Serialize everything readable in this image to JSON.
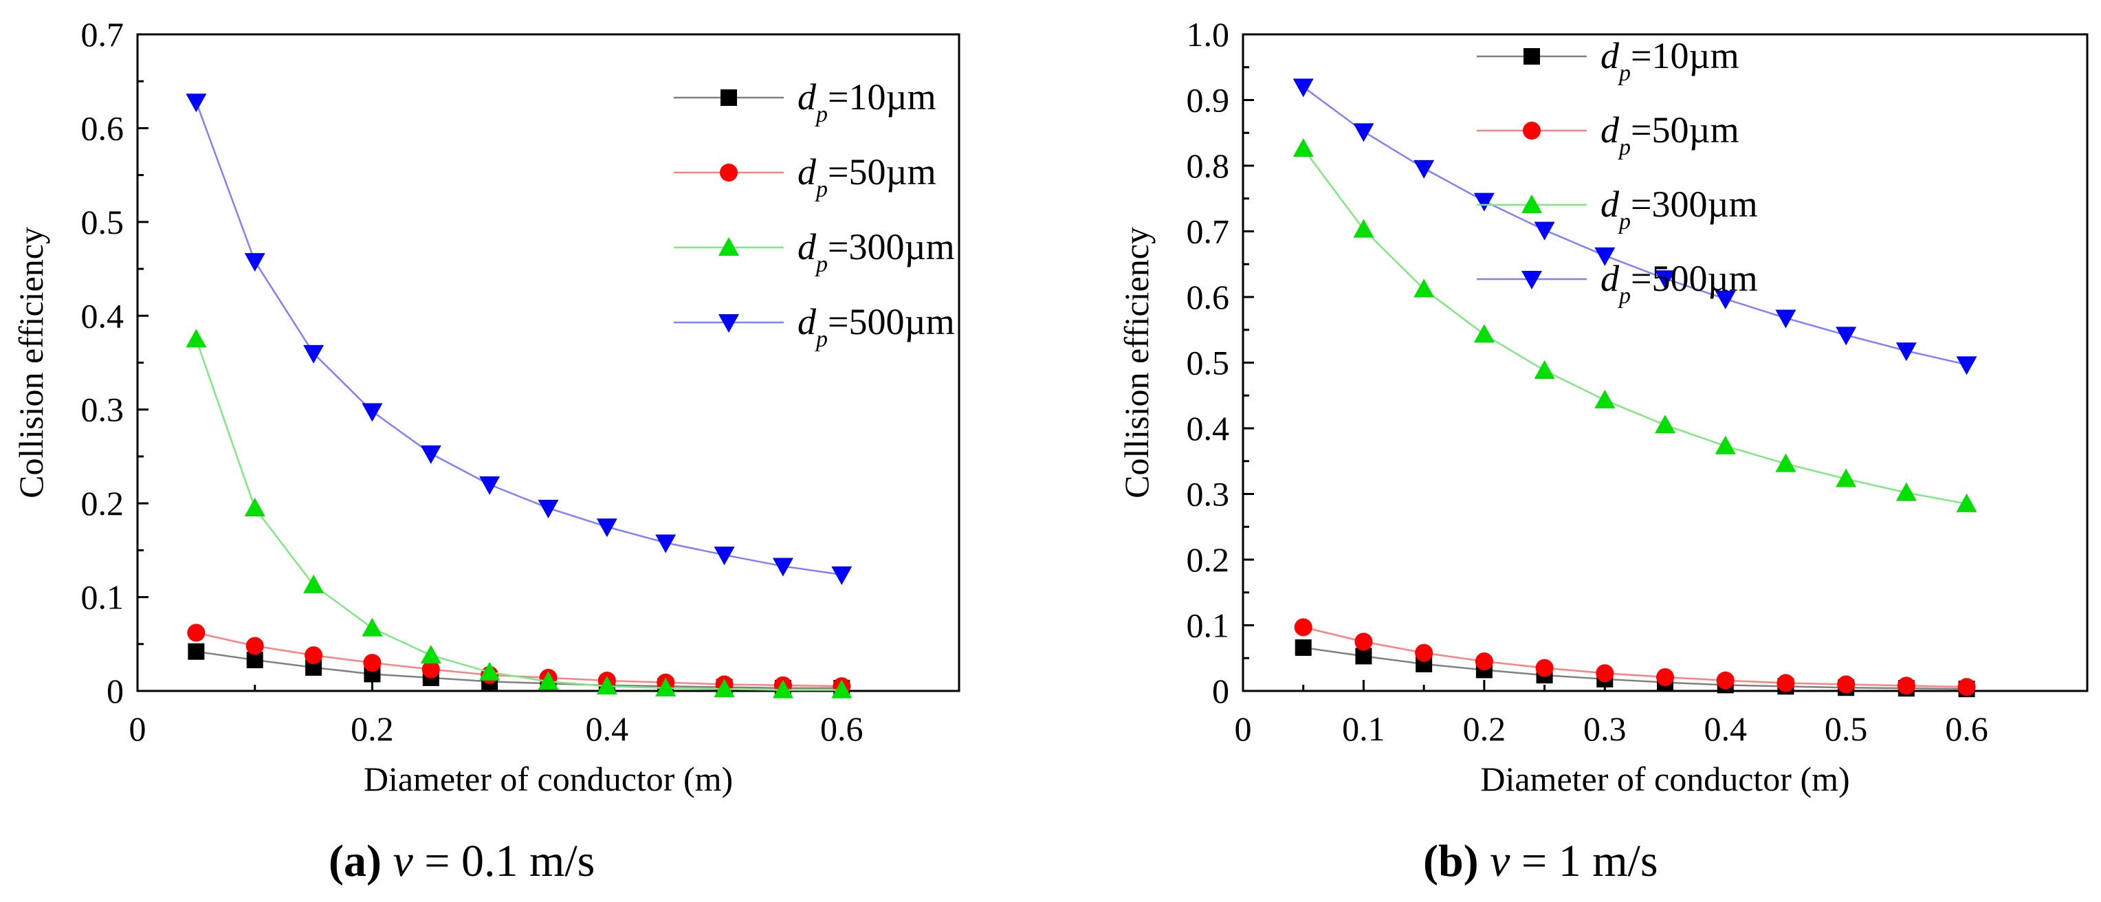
{
  "chart_data": [
    {
      "type": "line",
      "panel": "a",
      "xlabel": "Diameter of conductor (m)",
      "ylabel": "Collision efficiency",
      "xlim": [
        0,
        0.7
      ],
      "ylim": [
        0,
        0.7
      ],
      "xticks": [
        0,
        0.2,
        0.4,
        0.6
      ],
      "xtick_labels": [
        "0",
        "0.2",
        "0.4",
        "0.6"
      ],
      "yticks": [
        0,
        0.1,
        0.2,
        0.3,
        0.4,
        0.5,
        0.6,
        0.7
      ],
      "ytick_labels": [
        "0",
        "0.1",
        "0.2",
        "0.3",
        "0.4",
        "0.5",
        "0.6",
        "0.7"
      ],
      "legend_position": "top-right",
      "caption": {
        "label": "(a)",
        "var": "v",
        "text": " = 0.1 m/s"
      },
      "x": [
        0.05,
        0.1,
        0.15,
        0.2,
        0.25,
        0.3,
        0.35,
        0.4,
        0.45,
        0.5,
        0.55,
        0.6
      ],
      "series": [
        {
          "name_base": "d",
          "name_sub": "p",
          "name_tail": "=10µm",
          "color": "#000000",
          "line_color": "#808080",
          "marker": "square",
          "values": [
            0.042,
            0.033,
            0.025,
            0.018,
            0.014,
            0.01,
            0.008,
            0.006,
            0.005,
            0.004,
            0.003,
            0.003
          ]
        },
        {
          "name_base": "d",
          "name_sub": "p",
          "name_tail": "=50µm",
          "color": "#ff0000",
          "line_color": "#ff8080",
          "marker": "circle",
          "values": [
            0.062,
            0.048,
            0.038,
            0.03,
            0.023,
            0.017,
            0.014,
            0.011,
            0.009,
            0.007,
            0.006,
            0.005
          ]
        },
        {
          "name_base": "d",
          "name_sub": "p",
          "name_tail": "=300µm",
          "color": "#00e000",
          "line_color": "#80e880",
          "marker": "triangle-up",
          "values": [
            0.375,
            0.195,
            0.113,
            0.067,
            0.038,
            0.02,
            0.01,
            0.005,
            0.003,
            0.002,
            0.001,
            0.001
          ]
        },
        {
          "name_base": "d",
          "name_sub": "p",
          "name_tail": "=500µm",
          "color": "#0000ff",
          "line_color": "#8080ff",
          "marker": "triangle-down",
          "values": [
            0.628,
            0.458,
            0.36,
            0.298,
            0.253,
            0.22,
            0.195,
            0.175,
            0.158,
            0.145,
            0.133,
            0.124
          ]
        }
      ]
    },
    {
      "type": "line",
      "panel": "b",
      "xlabel": "Diameter of conductor (m)",
      "ylabel": "Collision efficiency",
      "xlim": [
        0,
        0.7
      ],
      "ylim": [
        0,
        1.0
      ],
      "xticks": [
        0,
        0.1,
        0.2,
        0.3,
        0.4,
        0.5,
        0.6
      ],
      "xtick_labels": [
        "0",
        "0.1",
        "0.2",
        "0.3",
        "0.4",
        "0.5",
        "0.6"
      ],
      "yticks": [
        0,
        0.1,
        0.2,
        0.3,
        0.4,
        0.5,
        0.6,
        0.7,
        0.8,
        0.9,
        1.0
      ],
      "ytick_labels": [
        "0",
        "0.1",
        "0.2",
        "0.3",
        "0.4",
        "0.5",
        "0.6",
        "0.7",
        "0.8",
        "0.9",
        "1.0"
      ],
      "legend_position": "top-right",
      "caption": {
        "label": "(b)",
        "var": "v",
        "text": " = 1 m/s"
      },
      "x": [
        0.05,
        0.1,
        0.15,
        0.2,
        0.25,
        0.3,
        0.35,
        0.4,
        0.45,
        0.5,
        0.55,
        0.6
      ],
      "series": [
        {
          "name_base": "d",
          "name_sub": "p",
          "name_tail": "=10µm",
          "color": "#000000",
          "line_color": "#808080",
          "marker": "square",
          "values": [
            0.066,
            0.053,
            0.041,
            0.032,
            0.024,
            0.018,
            0.013,
            0.009,
            0.007,
            0.005,
            0.004,
            0.003
          ]
        },
        {
          "name_base": "d",
          "name_sub": "p",
          "name_tail": "=50µm",
          "color": "#ff0000",
          "line_color": "#ff8080",
          "marker": "circle",
          "values": [
            0.097,
            0.075,
            0.058,
            0.045,
            0.035,
            0.027,
            0.021,
            0.016,
            0.012,
            0.01,
            0.008,
            0.006
          ]
        },
        {
          "name_base": "d",
          "name_sub": "p",
          "name_tail": "=300µm",
          "color": "#00e000",
          "line_color": "#80e880",
          "marker": "triangle-up",
          "values": [
            0.826,
            0.703,
            0.612,
            0.543,
            0.488,
            0.443,
            0.405,
            0.373,
            0.346,
            0.323,
            0.302,
            0.285
          ]
        },
        {
          "name_base": "d",
          "name_sub": "p",
          "name_tail": "=500µm",
          "color": "#0000ff",
          "line_color": "#8080ff",
          "marker": "triangle-down",
          "values": [
            0.92,
            0.852,
            0.796,
            0.746,
            0.702,
            0.663,
            0.628,
            0.597,
            0.568,
            0.542,
            0.518,
            0.497
          ]
        }
      ]
    }
  ]
}
